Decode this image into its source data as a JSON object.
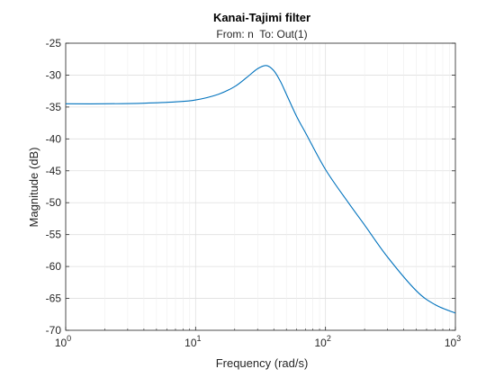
{
  "chart_data": {
    "type": "line",
    "title": "Kanai-Tajimi filter",
    "subtitle": "From: n  To: Out(1)",
    "xlabel": "Frequency (rad/s)",
    "ylabel": "Magnitude (dB)",
    "xscale": "log",
    "xlim": [
      1,
      1000
    ],
    "ylim": [
      -70,
      -25
    ],
    "grid": true,
    "x_ticks": [
      {
        "base": "10",
        "exp": "0",
        "value": 1
      },
      {
        "base": "10",
        "exp": "1",
        "value": 10
      },
      {
        "base": "10",
        "exp": "2",
        "value": 100
      },
      {
        "base": "10",
        "exp": "3",
        "value": 1000
      }
    ],
    "y_ticks": [
      "-25",
      "-30",
      "-35",
      "-40",
      "-45",
      "-50",
      "-55",
      "-60",
      "-65",
      "-70"
    ],
    "series": [
      {
        "color": "#0072bd",
        "x": [
          1,
          2,
          4,
          7,
          10,
          15,
          20,
          25,
          30,
          35,
          40,
          45,
          50,
          60,
          70,
          100,
          150,
          200,
          300,
          500,
          700,
          1000
        ],
        "y": [
          -34.5,
          -34.5,
          -34.4,
          -34.2,
          -33.9,
          -33.0,
          -31.8,
          -30.3,
          -29.0,
          -28.5,
          -29.3,
          -31.0,
          -33.0,
          -36.5,
          -39.0,
          -44.8,
          -50.0,
          -53.5,
          -58.5,
          -63.8,
          -66.0,
          -67.3
        ]
      }
    ]
  }
}
